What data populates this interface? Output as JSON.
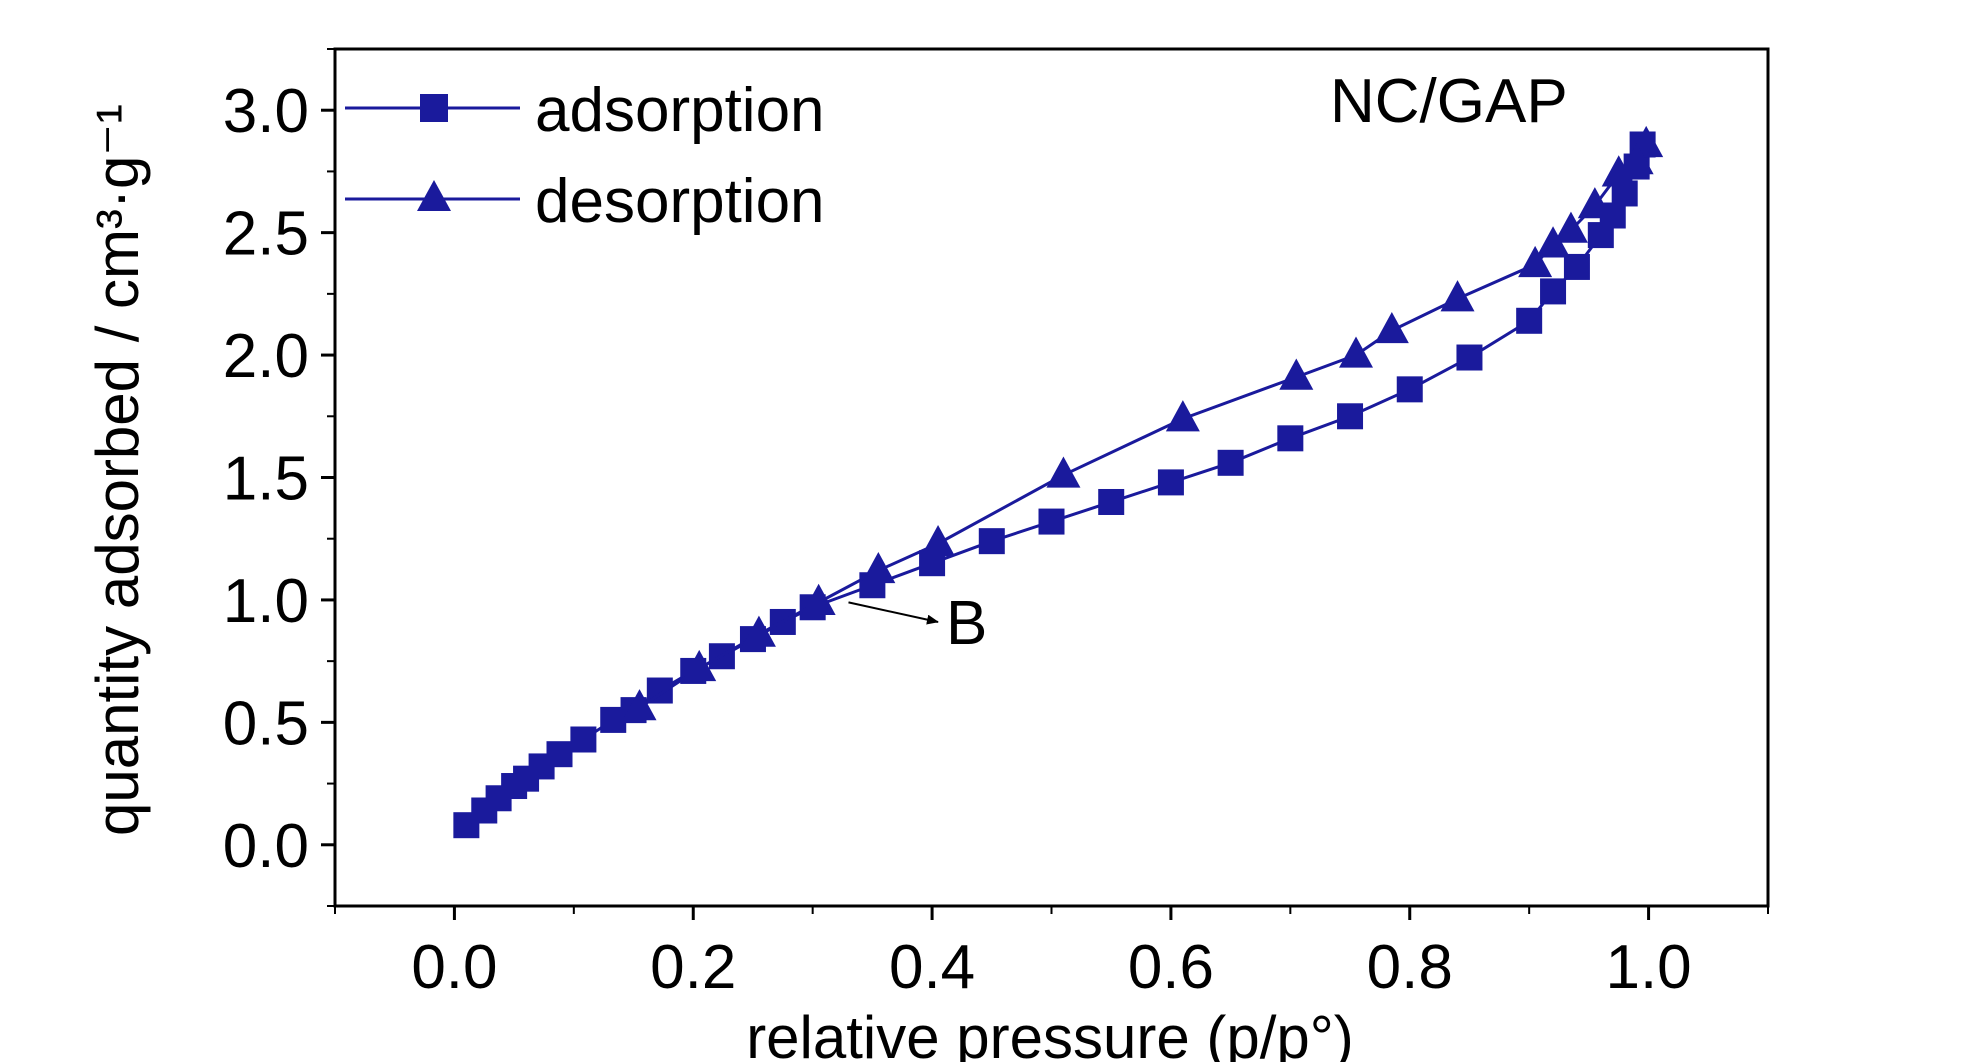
{
  "chart_data": {
    "type": "scatter",
    "title": "",
    "xlabel": "relative pressure",
    "xlabel_math": "(p/p°)",
    "ylabel": "quantity adsorbed / cm³·g⁻¹",
    "xlim": [
      -0.1,
      1.1
    ],
    "ylim": [
      -0.25,
      3.25
    ],
    "x_ticks": [
      0.0,
      0.2,
      0.4,
      0.6,
      0.8,
      1.0
    ],
    "x_tick_labels": [
      "0.0",
      "0.2",
      "0.4",
      "0.6",
      "0.8",
      "1.0"
    ],
    "y_ticks": [
      0.0,
      0.5,
      1.0,
      1.5,
      2.0,
      2.5,
      3.0
    ],
    "y_tick_labels": [
      "0.0",
      "0.5",
      "1.0",
      "1.5",
      "2.0",
      "2.5",
      "3.0"
    ],
    "grid": false,
    "legend_position": "top-left",
    "series": [
      {
        "name": "adsorption",
        "marker": "square",
        "color": "#1a1a9c",
        "x": [
          0.01,
          0.025,
          0.037,
          0.05,
          0.06,
          0.073,
          0.088,
          0.108,
          0.133,
          0.15,
          0.172,
          0.2,
          0.224,
          0.25,
          0.275,
          0.3,
          0.35,
          0.4,
          0.45,
          0.5,
          0.55,
          0.6,
          0.65,
          0.7,
          0.75,
          0.8,
          0.85,
          0.9,
          0.92,
          0.94,
          0.96,
          0.97,
          0.98,
          0.99,
          0.995
        ],
        "y": [
          0.08,
          0.14,
          0.19,
          0.24,
          0.27,
          0.32,
          0.37,
          0.43,
          0.51,
          0.55,
          0.63,
          0.71,
          0.77,
          0.84,
          0.91,
          0.97,
          1.06,
          1.15,
          1.24,
          1.32,
          1.4,
          1.48,
          1.56,
          1.66,
          1.75,
          1.86,
          1.99,
          2.14,
          2.26,
          2.36,
          2.49,
          2.57,
          2.66,
          2.77,
          2.86
        ]
      },
      {
        "name": "desorption",
        "marker": "triangle",
        "color": "#1a1a9c",
        "x": [
          0.998,
          0.99,
          0.975,
          0.955,
          0.935,
          0.92,
          0.905,
          0.84,
          0.785,
          0.755,
          0.705,
          0.61,
          0.51,
          0.405,
          0.355,
          0.305,
          0.255,
          0.205,
          0.155
        ],
        "y": [
          2.86,
          2.79,
          2.74,
          2.61,
          2.51,
          2.45,
          2.37,
          2.23,
          2.1,
          2.0,
          1.91,
          1.74,
          1.51,
          1.23,
          1.12,
          0.99,
          0.86,
          0.72,
          0.56
        ]
      }
    ],
    "annotations": [
      {
        "text": "NC/GAP"
      },
      {
        "text": "B",
        "arrow_from": [
          0.33,
          0.99
        ],
        "arrow_to": [
          0.42,
          0.91
        ]
      }
    ]
  }
}
